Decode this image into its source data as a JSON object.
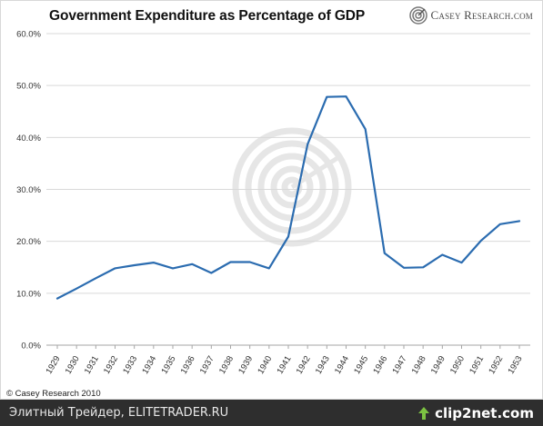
{
  "brand": {
    "name": "Casey Research.com"
  },
  "copyright": "© Casey Research 2010",
  "footer": {
    "left_text": "Элитный Трейдер, ELITETRADER.RU",
    "clip_text": "clip2net.com"
  },
  "colors": {
    "line": "#2b6cb0",
    "grid": "#d9d9d9",
    "footer_bg": "#2e2e2e",
    "watermark": "#e6e6e6"
  },
  "chart_data": {
    "type": "line",
    "title": "Government Expenditure as Percentage of GDP",
    "xlabel": "",
    "ylabel": "",
    "ylim": [
      0,
      60
    ],
    "y_ticks": [
      0,
      10,
      20,
      30,
      40,
      50,
      60
    ],
    "y_tick_labels": [
      "0.0%",
      "10.0%",
      "20.0%",
      "30.0%",
      "40.0%",
      "50.0%",
      "60.0%"
    ],
    "grid": "horizontal",
    "categories": [
      "1929",
      "1930",
      "1931",
      "1932",
      "1933",
      "1934",
      "1935",
      "1936",
      "1937",
      "1938",
      "1939",
      "1940",
      "1941",
      "1942",
      "1943",
      "1944",
      "1945",
      "1946",
      "1947",
      "1948",
      "1949",
      "1950",
      "1951",
      "1952",
      "1953"
    ],
    "values": [
      9.0,
      10.9,
      12.9,
      14.8,
      15.4,
      15.9,
      14.8,
      15.6,
      13.9,
      16.0,
      16.0,
      14.8,
      20.9,
      38.7,
      47.8,
      47.9,
      41.6,
      17.7,
      14.9,
      15.0,
      17.4,
      15.9,
      20.1,
      23.3,
      23.9
    ]
  }
}
